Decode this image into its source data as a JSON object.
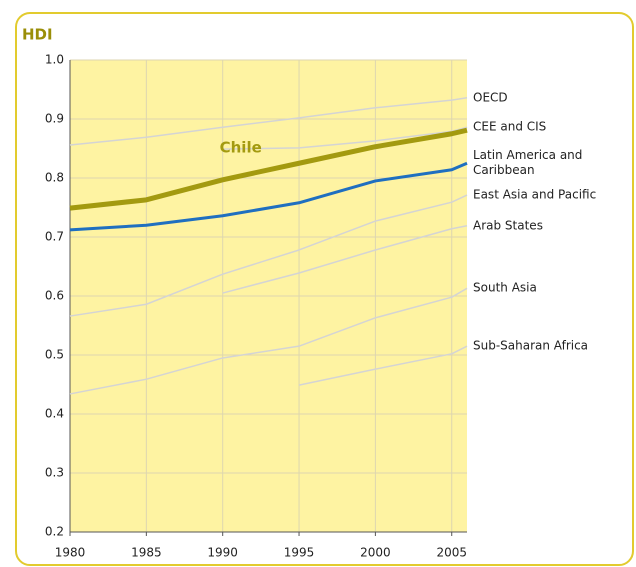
{
  "chart_data": {
    "type": "line",
    "title": "HDI",
    "x": [
      1980,
      1985,
      1990,
      1995,
      2000,
      2005,
      2006
    ],
    "xlim": [
      1980,
      2006
    ],
    "xticks": [
      1980,
      1985,
      1990,
      1995,
      2000,
      2005
    ],
    "ylim": [
      0.2,
      1.0
    ],
    "yticks": [
      0.2,
      0.3,
      0.4,
      0.5,
      0.6,
      0.7,
      0.8,
      0.9,
      {
        "value": 1.0,
        "label": "1.0"
      }
    ],
    "grid": true,
    "series": [
      {
        "name": "OECD",
        "color": "#d4d4d4",
        "line_width": 1.5,
        "label": "end",
        "values": [
          0.856,
          0.869,
          0.886,
          0.902,
          0.919,
          0.932,
          0.936
        ]
      },
      {
        "name": "CEE and CIS",
        "color": "#d4d4d4",
        "line_width": 1.5,
        "label": "end",
        "values": [
          null,
          null,
          0.849,
          0.851,
          0.863,
          0.879,
          0.886
        ]
      },
      {
        "name": "East Asia and Pacific",
        "color": "#d4d4d4",
        "line_width": 1.5,
        "label": "end",
        "values": [
          0.566,
          0.586,
          0.637,
          0.678,
          0.727,
          0.759,
          0.771
        ]
      },
      {
        "name": "Arab States",
        "color": "#d4d4d4",
        "line_width": 1.5,
        "label": "end",
        "values": [
          null,
          null,
          0.605,
          0.639,
          0.678,
          0.714,
          0.719
        ]
      },
      {
        "name": "South Asia",
        "color": "#d4d4d4",
        "line_width": 1.5,
        "label": "end",
        "values": [
          0.434,
          0.459,
          0.495,
          0.515,
          0.563,
          0.598,
          0.613
        ]
      },
      {
        "name": "Sub-Saharan Africa",
        "color": "#d4d4d4",
        "line_width": 1.5,
        "label": "end",
        "values": [
          null,
          null,
          null,
          0.449,
          0.476,
          0.502,
          0.515
        ]
      },
      {
        "name": "Latin America and Caribbean",
        "color": "#1f6fc0",
        "line_width": 3,
        "label": "end",
        "values": [
          0.712,
          0.72,
          0.736,
          0.758,
          0.795,
          0.814,
          0.825
        ]
      },
      {
        "name": "Chile",
        "color": "#a39a10",
        "line_width": 5,
        "label": "inline",
        "values": [
          0.749,
          0.763,
          0.797,
          0.825,
          0.853,
          0.875,
          0.881
        ]
      }
    ]
  }
}
